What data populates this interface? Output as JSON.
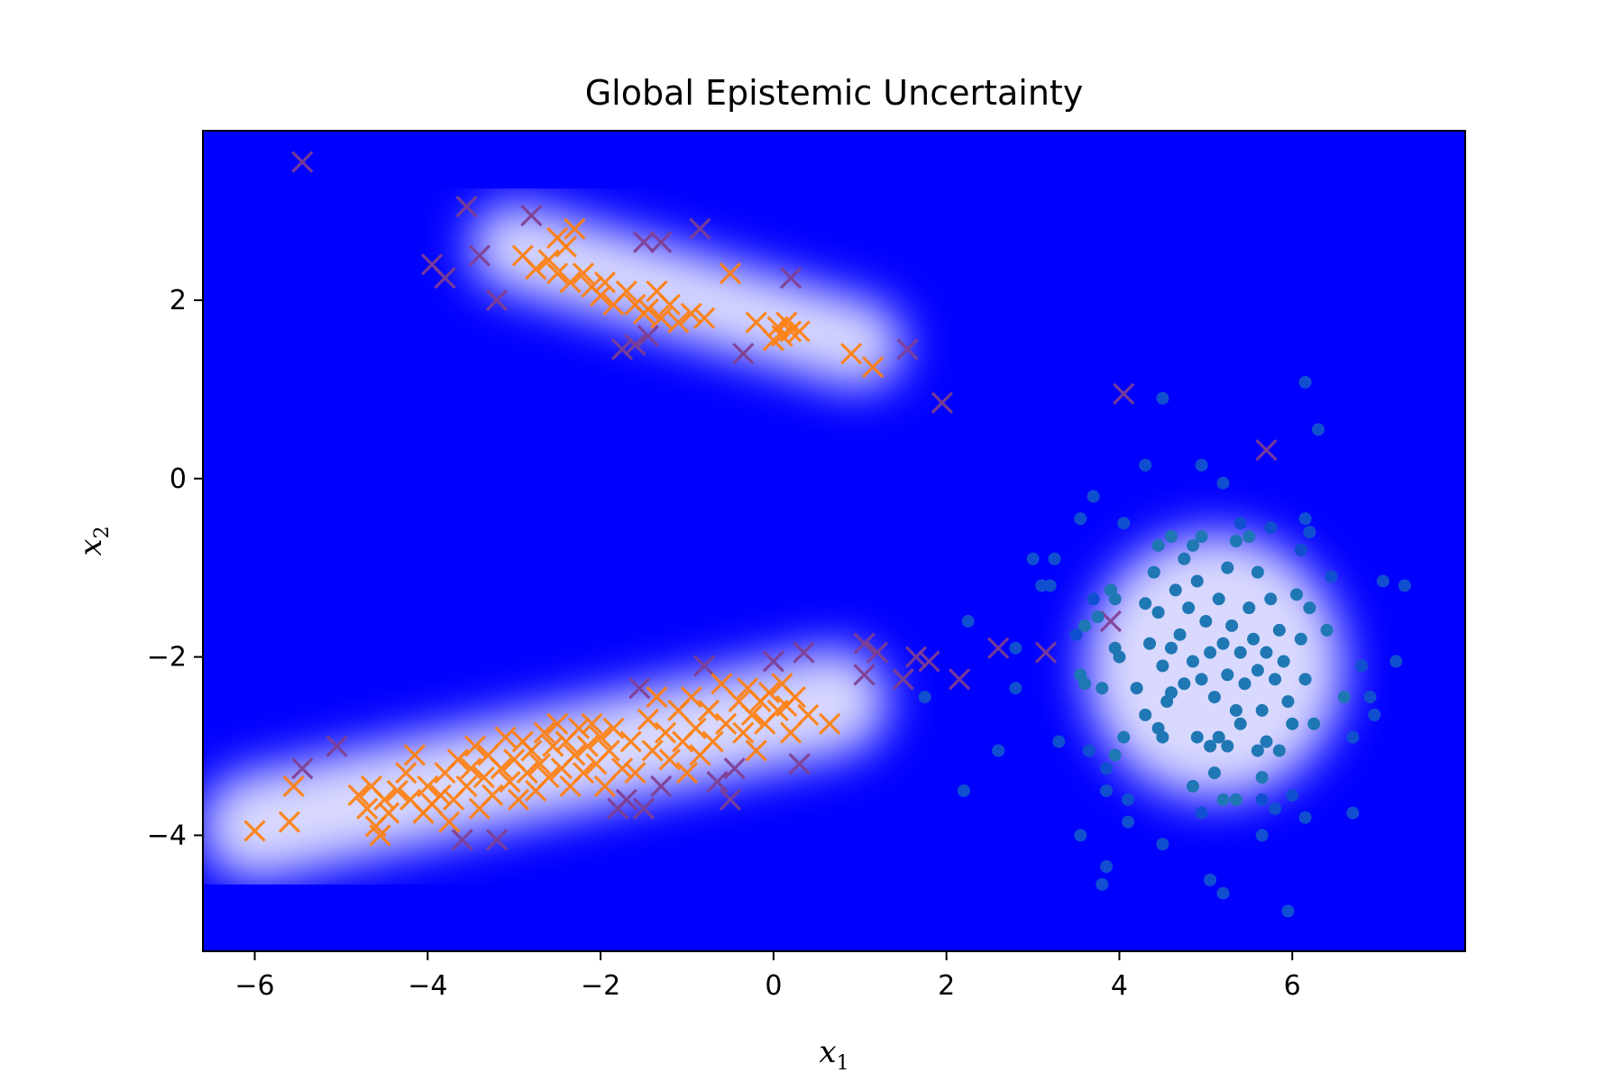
{
  "chart_data": {
    "type": "scatter",
    "title": "Global Epistemic Uncertainty",
    "xlabel": "x",
    "xlabel_sub": "1",
    "ylabel": "x",
    "ylabel_sub": "2",
    "xlim": [
      -6.6,
      8.0
    ],
    "ylim": [
      -5.3,
      3.9
    ],
    "xticks": [
      -6,
      -4,
      -2,
      0,
      2,
      4,
      6
    ],
    "yticks": [
      -4,
      -2,
      0,
      2
    ],
    "grid": false,
    "colors": {
      "background_low": "#0000ff",
      "background_high": "#ffffff",
      "cross_series": "#ff7f0e",
      "cross_uncertain": "#7f3f8f",
      "dot_series": "#1f77b4",
      "dot_uncertain": "#1050d0"
    },
    "uncertainty_field": {
      "description_of_regions": "high certainty (white) along data bands; low (blue) elsewhere",
      "bands": [
        {
          "x0": -6.0,
          "y0": -3.9,
          "x1": 0.7,
          "y1": -2.5,
          "width": 0.55
        },
        {
          "x0": -3.0,
          "y0": 2.6,
          "x1": 1.0,
          "y1": 1.5,
          "width": 0.45
        }
      ],
      "blobs": [
        {
          "x": 5.1,
          "y": -2.1,
          "r": 1.5
        }
      ]
    },
    "series": [
      {
        "marker": "x",
        "points": [
          [
            -5.45,
            3.55
          ],
          [
            -3.55,
            3.05
          ],
          [
            -2.8,
            2.95
          ],
          [
            -2.5,
            2.7
          ],
          [
            -2.4,
            2.6
          ],
          [
            -2.3,
            2.8
          ],
          [
            -1.5,
            2.65
          ],
          [
            -1.3,
            2.65
          ],
          [
            -0.85,
            2.8
          ],
          [
            -3.95,
            2.4
          ],
          [
            -3.8,
            2.25
          ],
          [
            -3.4,
            2.5
          ],
          [
            -3.2,
            2.0
          ],
          [
            -2.9,
            2.5
          ],
          [
            -2.75,
            2.35
          ],
          [
            -2.6,
            2.45
          ],
          [
            -2.5,
            2.3
          ],
          [
            -2.35,
            2.2
          ],
          [
            -2.2,
            2.3
          ],
          [
            -2.1,
            2.15
          ],
          [
            -2.0,
            2.05
          ],
          [
            -1.95,
            2.2
          ],
          [
            -1.85,
            1.95
          ],
          [
            -1.7,
            2.1
          ],
          [
            -1.6,
            1.95
          ],
          [
            -1.5,
            1.85
          ],
          [
            -1.45,
            1.9
          ],
          [
            -1.35,
            2.1
          ],
          [
            -1.3,
            1.8
          ],
          [
            -1.2,
            1.95
          ],
          [
            -1.1,
            1.75
          ],
          [
            -0.95,
            1.85
          ],
          [
            -0.8,
            1.8
          ],
          [
            -0.5,
            2.3
          ],
          [
            -1.75,
            1.45
          ],
          [
            -1.6,
            1.5
          ],
          [
            -1.45,
            1.6
          ],
          [
            -0.35,
            1.4
          ],
          [
            -0.2,
            1.75
          ],
          [
            0.0,
            1.55
          ],
          [
            0.05,
            1.7
          ],
          [
            0.1,
            1.6
          ],
          [
            0.15,
            1.75
          ],
          [
            0.2,
            1.65
          ],
          [
            0.3,
            1.65
          ],
          [
            0.2,
            2.25
          ],
          [
            0.9,
            1.4
          ],
          [
            1.15,
            1.25
          ],
          [
            1.55,
            1.45
          ],
          [
            1.95,
            0.85
          ],
          [
            4.05,
            0.95
          ],
          [
            5.7,
            0.32
          ],
          [
            -6.0,
            -3.95
          ],
          [
            -5.6,
            -3.85
          ],
          [
            -5.55,
            -3.45
          ],
          [
            -5.45,
            -3.25
          ],
          [
            -5.05,
            -3.0
          ],
          [
            -4.8,
            -3.55
          ],
          [
            -4.7,
            -3.7
          ],
          [
            -4.65,
            -3.45
          ],
          [
            -4.6,
            -3.9
          ],
          [
            -4.55,
            -4.0
          ],
          [
            -4.5,
            -3.6
          ],
          [
            -4.45,
            -3.75
          ],
          [
            -4.35,
            -3.5
          ],
          [
            -4.25,
            -3.3
          ],
          [
            -4.2,
            -3.6
          ],
          [
            -4.15,
            -3.1
          ],
          [
            -4.05,
            -3.75
          ],
          [
            -4.0,
            -3.45
          ],
          [
            -3.95,
            -3.65
          ],
          [
            -3.85,
            -3.55
          ],
          [
            -3.8,
            -3.3
          ],
          [
            -3.75,
            -3.85
          ],
          [
            -3.7,
            -3.6
          ],
          [
            -3.65,
            -3.15
          ],
          [
            -3.6,
            -4.05
          ],
          [
            -3.55,
            -3.45
          ],
          [
            -3.5,
            -3.25
          ],
          [
            -3.45,
            -3.0
          ],
          [
            -3.4,
            -3.7
          ],
          [
            -3.35,
            -3.35
          ],
          [
            -3.3,
            -3.1
          ],
          [
            -3.25,
            -3.55
          ],
          [
            -3.2,
            -4.05
          ],
          [
            -3.15,
            -3.25
          ],
          [
            -3.1,
            -2.9
          ],
          [
            -3.05,
            -3.4
          ],
          [
            -3.0,
            -3.15
          ],
          [
            -2.95,
            -3.6
          ],
          [
            -2.9,
            -2.95
          ],
          [
            -2.85,
            -3.3
          ],
          [
            -2.8,
            -3.05
          ],
          [
            -2.75,
            -3.5
          ],
          [
            -2.7,
            -3.2
          ],
          [
            -2.65,
            -2.85
          ],
          [
            -2.6,
            -3.35
          ],
          [
            -2.55,
            -3.0
          ],
          [
            -2.5,
            -2.75
          ],
          [
            -2.45,
            -3.25
          ],
          [
            -2.4,
            -2.95
          ],
          [
            -2.35,
            -3.45
          ],
          [
            -2.3,
            -3.1
          ],
          [
            -2.25,
            -2.8
          ],
          [
            -2.2,
            -3.3
          ],
          [
            -2.15,
            -3.0
          ],
          [
            -2.1,
            -2.75
          ],
          [
            -2.05,
            -3.2
          ],
          [
            -2.0,
            -2.9
          ],
          [
            -1.95,
            -3.45
          ],
          [
            -1.9,
            -3.05
          ],
          [
            -1.85,
            -2.8
          ],
          [
            -1.8,
            -3.7
          ],
          [
            -1.75,
            -3.25
          ],
          [
            -1.7,
            -3.6
          ],
          [
            -1.65,
            -2.95
          ],
          [
            -1.6,
            -3.3
          ],
          [
            -1.55,
            -2.35
          ],
          [
            -1.5,
            -3.7
          ],
          [
            -1.45,
            -2.7
          ],
          [
            -1.4,
            -3.05
          ],
          [
            -1.35,
            -2.45
          ],
          [
            -1.3,
            -3.45
          ],
          [
            -1.25,
            -2.85
          ],
          [
            -1.2,
            -3.15
          ],
          [
            -1.1,
            -2.6
          ],
          [
            -1.05,
            -2.95
          ],
          [
            -1.0,
            -3.3
          ],
          [
            -0.95,
            -2.45
          ],
          [
            -0.9,
            -2.8
          ],
          [
            -0.85,
            -3.1
          ],
          [
            -0.8,
            -2.1
          ],
          [
            -0.75,
            -2.6
          ],
          [
            -0.7,
            -2.95
          ],
          [
            -0.65,
            -3.4
          ],
          [
            -0.6,
            -2.3
          ],
          [
            -0.55,
            -2.75
          ],
          [
            -0.5,
            -3.6
          ],
          [
            -0.45,
            -3.25
          ],
          [
            -0.4,
            -2.5
          ],
          [
            -0.35,
            -2.85
          ],
          [
            -0.3,
            -2.35
          ],
          [
            -0.25,
            -2.65
          ],
          [
            -0.2,
            -3.05
          ],
          [
            -0.15,
            -2.5
          ],
          [
            -0.1,
            -2.75
          ],
          [
            -0.05,
            -2.4
          ],
          [
            0.0,
            -2.05
          ],
          [
            0.05,
            -2.6
          ],
          [
            0.1,
            -2.3
          ],
          [
            0.15,
            -2.55
          ],
          [
            0.2,
            -2.85
          ],
          [
            0.25,
            -2.45
          ],
          [
            0.3,
            -3.2
          ],
          [
            0.35,
            -1.95
          ],
          [
            0.4,
            -2.65
          ],
          [
            0.65,
            -2.75
          ],
          [
            1.05,
            -1.85
          ],
          [
            1.05,
            -2.2
          ],
          [
            1.2,
            -1.95
          ],
          [
            1.5,
            -2.25
          ],
          [
            1.65,
            -2.0
          ],
          [
            1.8,
            -2.05
          ],
          [
            2.15,
            -2.25
          ],
          [
            2.6,
            -1.9
          ],
          [
            3.15,
            -1.95
          ],
          [
            3.9,
            -1.6
          ]
        ]
      },
      {
        "marker": "dot",
        "points": [
          [
            6.15,
            1.08
          ],
          [
            6.3,
            0.55
          ],
          [
            4.5,
            0.9
          ],
          [
            3.55,
            -0.45
          ],
          [
            3.7,
            -0.2
          ],
          [
            4.3,
            0.15
          ],
          [
            4.95,
            0.15
          ],
          [
            5.2,
            -0.05
          ],
          [
            4.05,
            -0.5
          ],
          [
            4.45,
            -0.75
          ],
          [
            4.6,
            -0.65
          ],
          [
            4.75,
            -0.9
          ],
          [
            4.85,
            -0.75
          ],
          [
            4.95,
            -0.65
          ],
          [
            5.25,
            -1.0
          ],
          [
            5.35,
            -0.7
          ],
          [
            5.4,
            -0.5
          ],
          [
            5.5,
            -0.65
          ],
          [
            5.6,
            -1.05
          ],
          [
            5.75,
            -0.55
          ],
          [
            6.1,
            -0.8
          ],
          [
            6.15,
            -0.45
          ],
          [
            6.2,
            -0.6
          ],
          [
            6.45,
            -1.1
          ],
          [
            3.0,
            -0.9
          ],
          [
            3.1,
            -1.2
          ],
          [
            3.2,
            -1.2
          ],
          [
            3.25,
            -0.9
          ],
          [
            3.7,
            -1.35
          ],
          [
            3.6,
            -1.65
          ],
          [
            3.75,
            -1.55
          ],
          [
            3.9,
            -1.25
          ],
          [
            3.95,
            -1.35
          ],
          [
            3.5,
            -1.75
          ],
          [
            3.55,
            -2.2
          ],
          [
            3.6,
            -2.3
          ],
          [
            3.8,
            -2.35
          ],
          [
            3.95,
            -1.9
          ],
          [
            4.0,
            -2.0
          ],
          [
            4.2,
            -2.35
          ],
          [
            4.3,
            -1.4
          ],
          [
            4.35,
            -1.85
          ],
          [
            4.4,
            -1.05
          ],
          [
            4.45,
            -1.5
          ],
          [
            4.5,
            -2.1
          ],
          [
            4.55,
            -2.5
          ],
          [
            4.6,
            -1.9
          ],
          [
            4.65,
            -1.25
          ],
          [
            4.7,
            -1.75
          ],
          [
            4.75,
            -2.3
          ],
          [
            4.8,
            -1.45
          ],
          [
            4.85,
            -2.05
          ],
          [
            4.9,
            -1.15
          ],
          [
            4.95,
            -2.25
          ],
          [
            5.0,
            -1.6
          ],
          [
            5.05,
            -1.95
          ],
          [
            5.1,
            -2.45
          ],
          [
            5.15,
            -1.35
          ],
          [
            5.2,
            -1.85
          ],
          [
            5.25,
            -2.2
          ],
          [
            5.3,
            -1.65
          ],
          [
            5.35,
            -2.6
          ],
          [
            5.4,
            -1.95
          ],
          [
            5.45,
            -2.3
          ],
          [
            5.5,
            -1.45
          ],
          [
            5.55,
            -1.8
          ],
          [
            5.6,
            -2.15
          ],
          [
            5.65,
            -2.6
          ],
          [
            5.7,
            -1.95
          ],
          [
            5.75,
            -1.35
          ],
          [
            5.8,
            -2.25
          ],
          [
            5.85,
            -1.7
          ],
          [
            5.9,
            -2.05
          ],
          [
            5.95,
            -2.5
          ],
          [
            6.05,
            -1.3
          ],
          [
            6.1,
            -1.8
          ],
          [
            6.15,
            -2.25
          ],
          [
            6.2,
            -1.45
          ],
          [
            6.25,
            -2.75
          ],
          [
            6.4,
            -1.7
          ],
          [
            6.6,
            -2.45
          ],
          [
            6.7,
            -2.9
          ],
          [
            6.8,
            -2.1
          ],
          [
            6.9,
            -2.45
          ],
          [
            6.95,
            -2.65
          ],
          [
            7.05,
            -1.15
          ],
          [
            7.2,
            -2.05
          ],
          [
            7.3,
            -1.2
          ],
          [
            4.3,
            -2.65
          ],
          [
            4.45,
            -2.8
          ],
          [
            4.5,
            -2.9
          ],
          [
            4.6,
            -2.4
          ],
          [
            4.9,
            -2.9
          ],
          [
            5.05,
            -3.0
          ],
          [
            5.15,
            -2.9
          ],
          [
            5.25,
            -3.0
          ],
          [
            5.4,
            -2.75
          ],
          [
            5.6,
            -3.05
          ],
          [
            5.7,
            -2.95
          ],
          [
            5.85,
            -3.05
          ],
          [
            6.0,
            -2.75
          ],
          [
            4.05,
            -2.9
          ],
          [
            3.95,
            -3.1
          ],
          [
            3.85,
            -3.25
          ],
          [
            3.3,
            -2.95
          ],
          [
            3.65,
            -3.05
          ],
          [
            3.85,
            -3.5
          ],
          [
            4.1,
            -3.6
          ],
          [
            4.85,
            -3.45
          ],
          [
            4.95,
            -3.75
          ],
          [
            5.1,
            -3.3
          ],
          [
            5.35,
            -3.6
          ],
          [
            5.65,
            -3.35
          ],
          [
            5.65,
            -3.6
          ],
          [
            5.8,
            -3.7
          ],
          [
            6.0,
            -3.55
          ],
          [
            6.15,
            -3.8
          ],
          [
            5.65,
            -4.0
          ],
          [
            5.2,
            -3.6
          ],
          [
            4.1,
            -3.85
          ],
          [
            4.5,
            -4.1
          ],
          [
            3.55,
            -4.0
          ],
          [
            3.85,
            -4.35
          ],
          [
            3.8,
            -4.55
          ],
          [
            5.05,
            -4.5
          ],
          [
            5.2,
            -4.65
          ],
          [
            5.95,
            -4.85
          ],
          [
            6.7,
            -3.75
          ],
          [
            2.25,
            -1.6
          ],
          [
            2.8,
            -1.9
          ],
          [
            2.8,
            -2.35
          ],
          [
            2.6,
            -3.05
          ],
          [
            2.2,
            -3.5
          ],
          [
            1.75,
            -2.45
          ]
        ]
      }
    ]
  }
}
